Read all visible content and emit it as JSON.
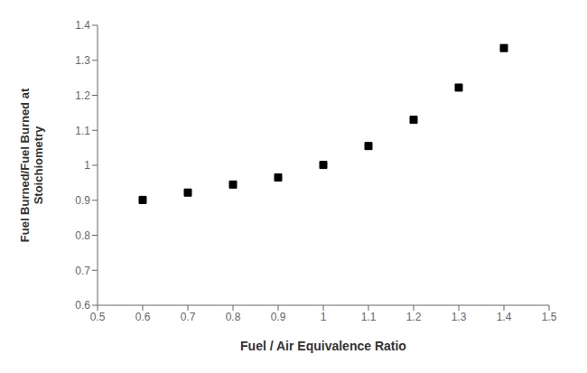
{
  "chart_data": {
    "type": "scatter",
    "x": [
      0.6,
      0.7,
      0.8,
      0.9,
      1.0,
      1.1,
      1.2,
      1.3,
      1.4
    ],
    "values": [
      0.901,
      0.922,
      0.945,
      0.965,
      1.001,
      1.055,
      1.13,
      1.222,
      1.335
    ],
    "xlabel": "Fuel / Air Equivalence Ratio",
    "ylabel": "Fuel Burned/Fuel Burned at\nStoichiometry",
    "xlim": [
      0.5,
      1.5
    ],
    "ylim": [
      0.6,
      1.4
    ],
    "xticks": [
      0.5,
      0.6,
      0.7,
      0.8,
      0.9,
      1.0,
      1.1,
      1.2,
      1.3,
      1.4,
      1.5
    ],
    "yticks": [
      0.6,
      0.7,
      0.8,
      0.9,
      1.0,
      1.1,
      1.2,
      1.3,
      1.4
    ],
    "marker": "square",
    "color": "black",
    "grid": false
  }
}
